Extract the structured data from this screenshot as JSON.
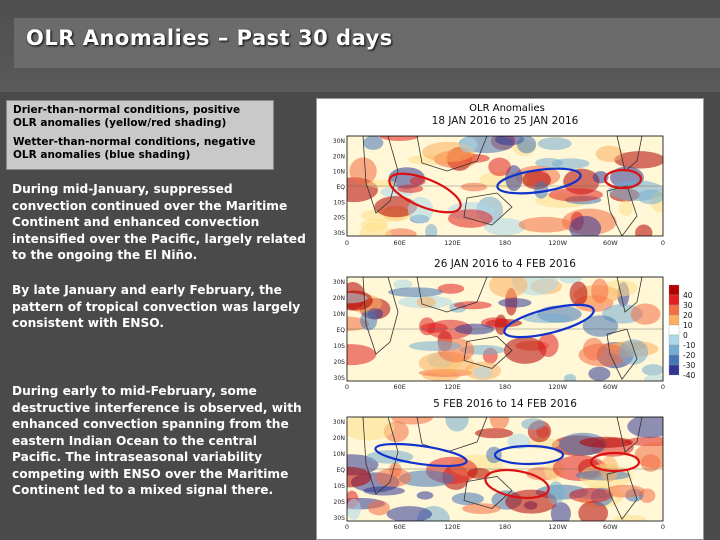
{
  "slide": {
    "title": "OLR Anomalies – Past 30 days"
  },
  "legend": {
    "drier": "Drier-than-normal conditions, positive OLR anomalies (yellow/red shading)",
    "wetter": "Wetter-than-normal conditions, negative OLR anomalies (blue shading)"
  },
  "paragraphs": {
    "p1": "During mid-January, suppressed convection continued over the Maritime Continent and enhanced convection intensified over the Pacific, largely related to the ongoing the El Niño.",
    "p2": "By late January and early February, the pattern of tropical convection was largely consistent with ENSO.",
    "p3": "During early to mid-February, some destructive interference is observed, with enhanced convection spanning from the eastern Indian Ocean to the central Pacific. The intraseasonal variability competing with ENSO over the Maritime Continent led to a mixed signal there."
  },
  "figure": {
    "header": "OLR Anomalies",
    "panels": [
      {
        "title": "18 JAN 2016 to 25 JAN 2016"
      },
      {
        "title": "26 JAN 2016 to 4 FEB 2016"
      },
      {
        "title": "5 FEB 2016 to 14 FEB 2016"
      }
    ],
    "lat_labels": [
      "30N",
      "20N",
      "10N",
      "EQ",
      "10S",
      "20S",
      "30S"
    ],
    "lon_labels_top": [
      "0",
      "60E",
      "120E",
      "180",
      "120W",
      "60W",
      "0"
    ],
    "lon_labels_other": [
      "0",
      "60E",
      "120E",
      "180",
      "120W",
      "60W",
      "0"
    ],
    "colorbar": {
      "labels": [
        "40",
        "30",
        "20",
        "10",
        "0",
        "-10",
        "-20",
        "-30",
        "-40"
      ],
      "colors": [
        "#b30000",
        "#e02020",
        "#f46d43",
        "#fdae61",
        "#fee08b",
        "#ffffff",
        "#abd9e9",
        "#74add1",
        "#4575b4",
        "#313695"
      ]
    },
    "annotation_colors": {
      "dry": "#dd1111",
      "wet": "#1133cc"
    }
  }
}
